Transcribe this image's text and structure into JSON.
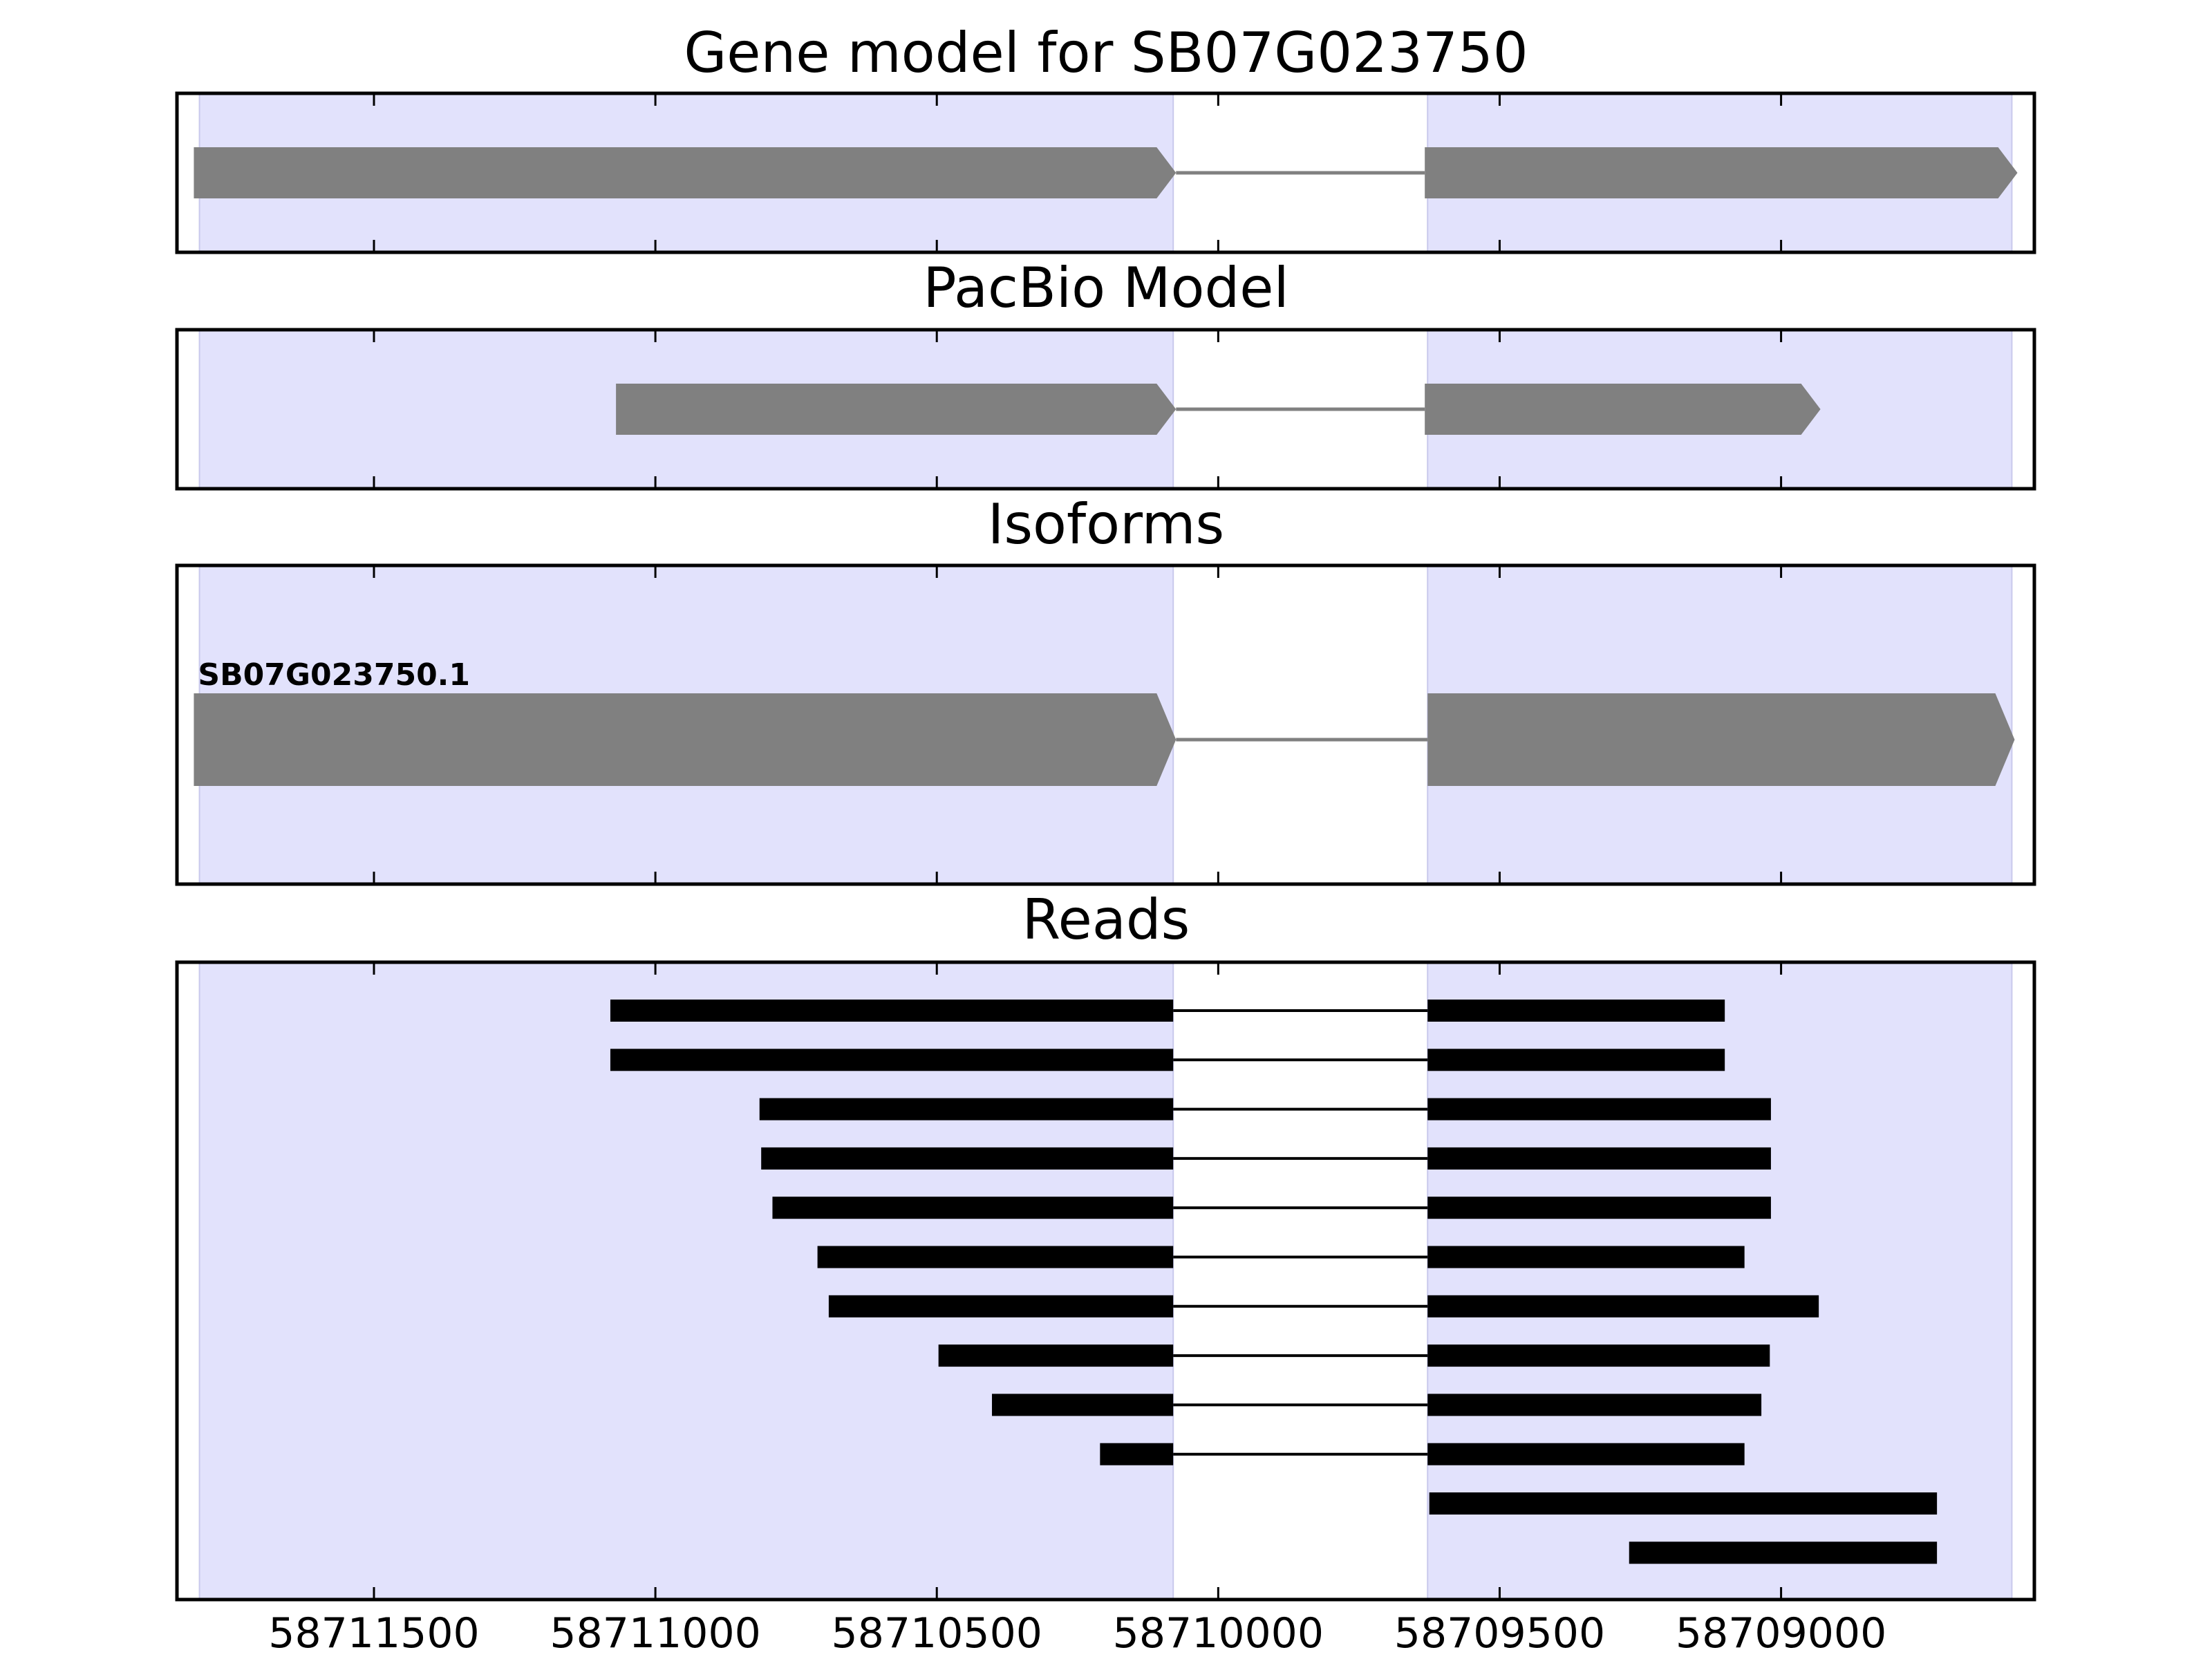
{
  "chart_data": {
    "type": "gene_model_tracks",
    "x_axis": {
      "reversed": true,
      "xlim": [
        58711850,
        58708550
      ],
      "tick_values": [
        58711500,
        58711000,
        58710500,
        58710000,
        58709500,
        58709000
      ],
      "tick_labels": [
        "58711500",
        "58711000",
        "58710500",
        "58710000",
        "58709500",
        "58709000"
      ]
    },
    "exon_shading": [
      {
        "start": 58711810,
        "end": 58710080
      },
      {
        "start": 58709628,
        "end": 58708590
      }
    ],
    "colors": {
      "exon_shading": "#e2e2fc",
      "model_feature": "#808080",
      "read_feature": "#000000"
    },
    "panels": [
      {
        "title": "Gene model for SB07G023750",
        "features": [
          {
            "exons": [
              [
                58711820,
                58710075
              ],
              [
                58709633,
                58708580
              ]
            ],
            "direction": "reverse"
          }
        ]
      },
      {
        "title": "PacBio Model",
        "features": [
          {
            "exons": [
              [
                58711070,
                58710075
              ],
              [
                58709633,
                58708930
              ]
            ],
            "direction": "reverse"
          }
        ]
      },
      {
        "title": "Isoforms",
        "features": [
          {
            "label": "SB07G023750.1",
            "exons": [
              [
                58711820,
                58710075
              ],
              [
                58709628,
                58708585
              ]
            ],
            "direction": "reverse"
          }
        ]
      },
      {
        "title": "Reads",
        "reads": [
          {
            "exons": [
              [
                58711080,
                58710080
              ],
              [
                58709628,
                58709100
              ]
            ]
          },
          {
            "exons": [
              [
                58711080,
                58710080
              ],
              [
                58709628,
                58709100
              ]
            ]
          },
          {
            "exons": [
              [
                58710815,
                58710080
              ],
              [
                58709628,
                58709018
              ]
            ]
          },
          {
            "exons": [
              [
                58710812,
                58710080
              ],
              [
                58709628,
                58709018
              ]
            ]
          },
          {
            "exons": [
              [
                58710792,
                58710080
              ],
              [
                58709628,
                58709018
              ]
            ]
          },
          {
            "exons": [
              [
                58710712,
                58710080
              ],
              [
                58709628,
                58709065
              ]
            ]
          },
          {
            "exons": [
              [
                58710692,
                58710080
              ],
              [
                58709628,
                58708933
              ]
            ]
          },
          {
            "exons": [
              [
                58710497,
                58710080
              ],
              [
                58709628,
                58709020
              ]
            ]
          },
          {
            "exons": [
              [
                58710402,
                58710080
              ],
              [
                58709628,
                58709035
              ]
            ]
          },
          {
            "exons": [
              [
                58710210,
                58710080
              ],
              [
                58709628,
                58709065
              ]
            ]
          },
          {
            "exons": [
              [
                58709625,
                58708723
              ]
            ]
          },
          {
            "exons": [
              [
                58709270,
                58708723
              ]
            ]
          }
        ]
      }
    ]
  }
}
